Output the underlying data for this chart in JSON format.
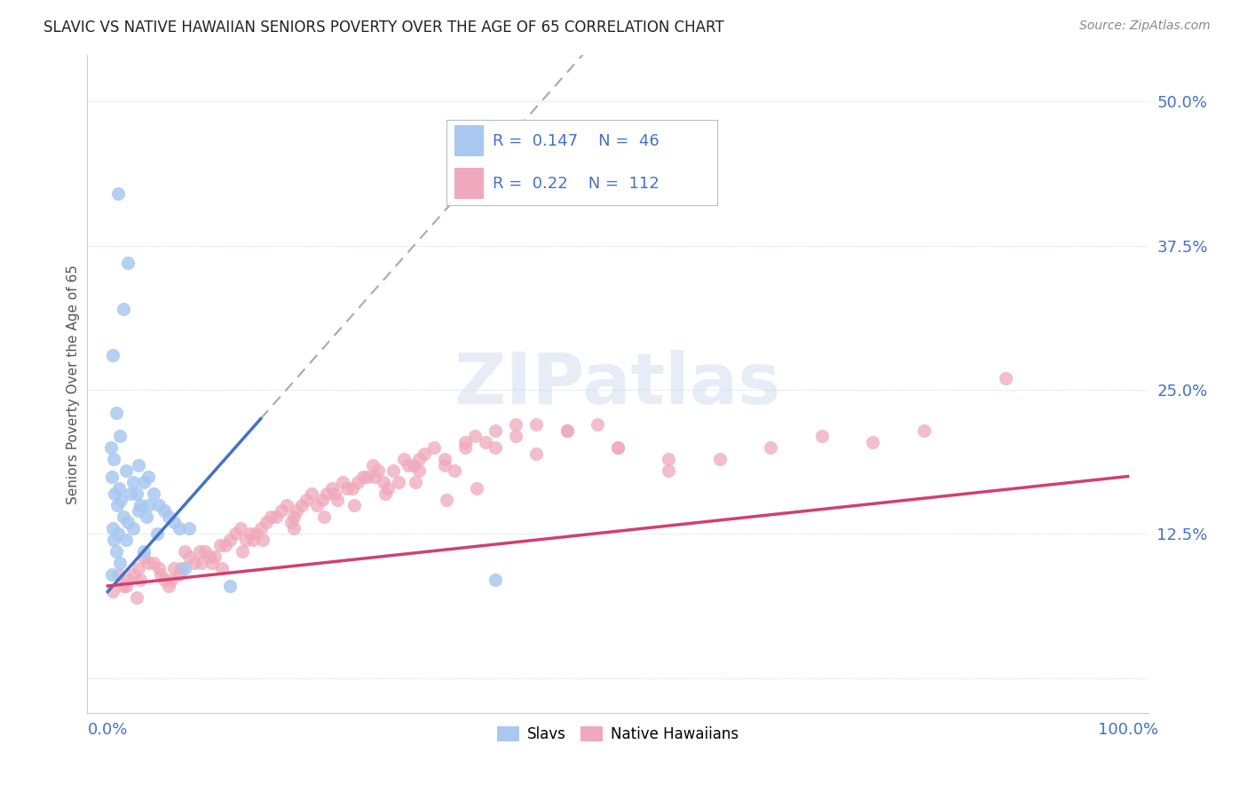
{
  "title": "SLAVIC VS NATIVE HAWAIIAN SENIORS POVERTY OVER THE AGE OF 65 CORRELATION CHART",
  "source": "Source: ZipAtlas.com",
  "ylabel": "Seniors Poverty Over the Age of 65",
  "xlim": [
    -2,
    102
  ],
  "ylim": [
    -3,
    54
  ],
  "R_slavs": 0.147,
  "N_slavs": 46,
  "R_hawaiians": 0.22,
  "N_hawaiians": 112,
  "slavs_color": "#a8c8f0",
  "hawaiians_color": "#f0a8bc",
  "trend_slavs_color": "#4472c4",
  "trend_hawaiians_color": "#d04070",
  "text_color": "#4472c4",
  "watermark": "ZIPatlas",
  "background_color": "#ffffff",
  "grid_color": "#c8d4e8",
  "slavs_x": [
    1.0,
    2.0,
    1.5,
    0.5,
    0.8,
    1.2,
    0.3,
    0.6,
    1.8,
    2.5,
    3.0,
    0.4,
    0.7,
    1.1,
    2.2,
    3.5,
    4.0,
    0.9,
    1.3,
    2.8,
    3.2,
    4.5,
    5.0,
    0.5,
    1.5,
    2.0,
    3.0,
    4.0,
    5.5,
    6.0,
    0.6,
    1.0,
    2.5,
    3.8,
    6.5,
    7.0,
    0.8,
    1.8,
    4.8,
    8.0,
    0.4,
    1.2,
    3.5,
    7.5,
    12.0,
    38.0
  ],
  "slavs_y": [
    42.0,
    36.0,
    32.0,
    28.0,
    23.0,
    21.0,
    20.0,
    19.0,
    18.0,
    17.0,
    18.5,
    17.5,
    16.0,
    16.5,
    16.0,
    17.0,
    17.5,
    15.0,
    15.5,
    16.0,
    15.0,
    16.0,
    15.0,
    13.0,
    14.0,
    13.5,
    14.5,
    15.0,
    14.5,
    14.0,
    12.0,
    12.5,
    13.0,
    14.0,
    13.5,
    13.0,
    11.0,
    12.0,
    12.5,
    13.0,
    9.0,
    10.0,
    11.0,
    9.5,
    8.0,
    8.5
  ],
  "hawaiians_x": [
    1.0,
    2.0,
    3.0,
    4.0,
    5.0,
    6.0,
    7.0,
    8.0,
    9.0,
    10.0,
    11.0,
    12.0,
    13.0,
    14.0,
    15.0,
    16.0,
    17.0,
    18.0,
    19.0,
    20.0,
    21.0,
    22.0,
    23.0,
    24.0,
    25.0,
    26.0,
    27.0,
    28.0,
    29.0,
    30.0,
    31.0,
    32.0,
    33.0,
    34.0,
    35.0,
    36.0,
    37.0,
    38.0,
    40.0,
    42.0,
    45.0,
    48.0,
    50.0,
    55.0,
    60.0,
    65.0,
    70.0,
    75.0,
    80.0,
    88.0,
    1.5,
    2.5,
    3.5,
    4.5,
    5.5,
    6.5,
    7.5,
    8.5,
    9.5,
    10.5,
    11.5,
    12.5,
    13.5,
    14.5,
    15.5,
    16.5,
    17.5,
    18.5,
    19.5,
    20.5,
    21.5,
    22.5,
    23.5,
    24.5,
    25.5,
    26.5,
    27.5,
    28.5,
    29.5,
    30.5,
    0.5,
    1.8,
    3.2,
    5.2,
    7.2,
    9.2,
    11.2,
    13.2,
    15.2,
    18.2,
    21.2,
    24.2,
    27.2,
    30.2,
    33.2,
    36.2,
    2.8,
    6.2,
    10.2,
    14.2,
    18.2,
    22.2,
    26.2,
    30.5,
    35.0,
    40.0,
    45.0,
    50.0,
    55.0,
    33.0,
    38.0,
    42.0
  ],
  "hawaiians_y": [
    9.0,
    8.5,
    9.5,
    10.0,
    9.5,
    8.0,
    9.0,
    10.5,
    11.0,
    10.5,
    11.5,
    12.0,
    13.0,
    12.5,
    13.0,
    14.0,
    14.5,
    13.5,
    15.0,
    16.0,
    15.5,
    16.5,
    17.0,
    16.5,
    17.5,
    18.5,
    17.0,
    18.0,
    19.0,
    18.5,
    19.5,
    20.0,
    19.0,
    18.0,
    20.0,
    21.0,
    20.5,
    21.5,
    22.0,
    19.5,
    21.5,
    22.0,
    20.0,
    18.0,
    19.0,
    20.0,
    21.0,
    20.5,
    21.5,
    26.0,
    8.0,
    9.0,
    10.5,
    10.0,
    8.5,
    9.5,
    11.0,
    10.0,
    11.0,
    10.5,
    11.5,
    12.5,
    12.0,
    12.5,
    13.5,
    14.0,
    15.0,
    14.5,
    15.5,
    15.0,
    16.0,
    15.5,
    16.5,
    17.0,
    17.5,
    18.0,
    16.5,
    17.0,
    18.5,
    18.0,
    7.5,
    8.0,
    8.5,
    9.0,
    9.5,
    10.0,
    9.5,
    11.0,
    12.0,
    13.0,
    14.0,
    15.0,
    16.0,
    17.0,
    15.5,
    16.5,
    7.0,
    8.5,
    10.0,
    12.0,
    14.0,
    16.0,
    17.5,
    19.0,
    20.5,
    21.0,
    21.5,
    20.0,
    19.0,
    18.5,
    20.0,
    22.0
  ],
  "trend_slavs_x0": 0,
  "trend_slavs_y0": 7.5,
  "trend_slavs_x1": 15,
  "trend_slavs_y1": 22.5,
  "trend_haw_x0": 0,
  "trend_haw_y0": 8.0,
  "trend_haw_x1": 100,
  "trend_haw_y1": 17.5
}
